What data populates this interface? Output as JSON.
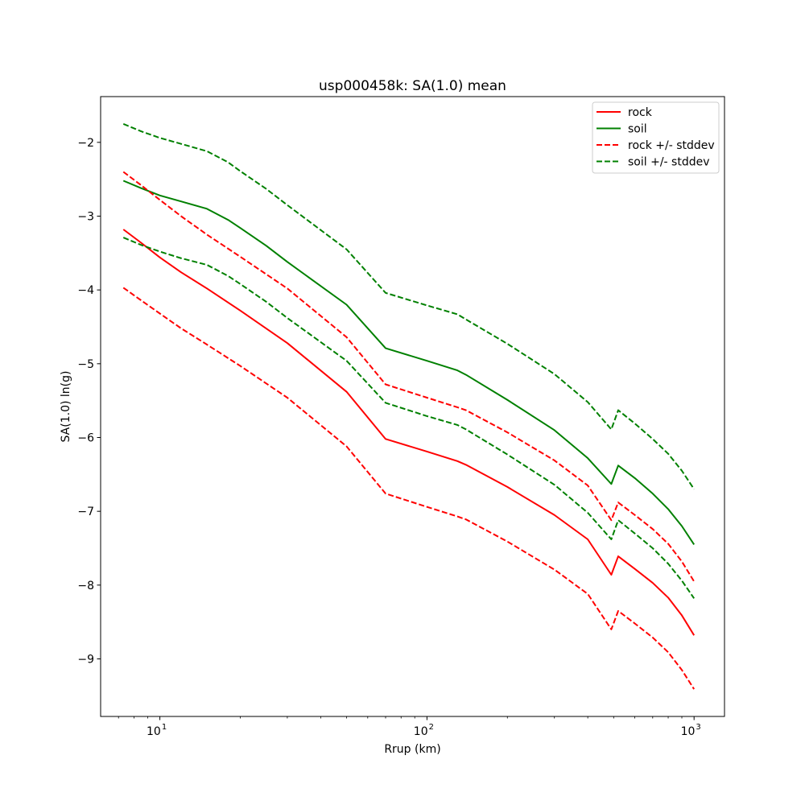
{
  "chart_data": {
    "type": "line",
    "title": "usp000458k: SA(1.0) mean",
    "xlabel": "Rrup (km)",
    "ylabel": "SA(1.0) ln(g)",
    "xscale": "log",
    "xlim": [
      6.0,
      1300
    ],
    "ylim": [
      -9.78,
      -1.38
    ],
    "yticks": [
      -9,
      -8,
      -7,
      -6,
      -5,
      -4,
      -3,
      -2
    ],
    "yticklabels": [
      "−9",
      "−8",
      "−7",
      "−6",
      "−5",
      "−4",
      "−3",
      "−2"
    ],
    "xticks": [
      {
        "value": 10,
        "base": "10",
        "exp": "1"
      },
      {
        "value": 100,
        "base": "10",
        "exp": "2"
      },
      {
        "value": 1000,
        "base": "10",
        "exp": "3"
      }
    ],
    "grid": false,
    "legend_position": "top-right",
    "series": [
      {
        "name": "rock",
        "color": "#ff0000",
        "dash": "solid",
        "x": [
          7.3,
          8.5,
          10,
          12,
          15,
          20,
          30,
          50,
          70,
          100,
          130,
          140,
          200,
          300,
          400,
          490,
          520,
          600,
          700,
          800,
          900,
          1000
        ],
        "y": [
          -3.18,
          -3.36,
          -3.56,
          -3.76,
          -3.98,
          -4.28,
          -4.72,
          -5.38,
          -6.02,
          -6.19,
          -6.32,
          -6.37,
          -6.67,
          -7.05,
          -7.38,
          -7.86,
          -7.61,
          -7.78,
          -7.97,
          -8.17,
          -8.41,
          -8.68
        ]
      },
      {
        "name": "soil",
        "color": "#008000",
        "dash": "solid",
        "x": [
          7.3,
          8.5,
          10,
          12,
          15,
          18,
          20,
          25,
          30,
          50,
          70,
          100,
          130,
          140,
          200,
          300,
          400,
          490,
          520,
          600,
          700,
          800,
          900,
          1000
        ],
        "y": [
          -2.52,
          -2.62,
          -2.72,
          -2.8,
          -2.9,
          -3.05,
          -3.16,
          -3.4,
          -3.62,
          -4.2,
          -4.79,
          -4.96,
          -5.09,
          -5.15,
          -5.49,
          -5.9,
          -6.28,
          -6.63,
          -6.38,
          -6.55,
          -6.76,
          -6.97,
          -7.2,
          -7.45
        ]
      },
      {
        "name": "rock +/- stddev",
        "color": "#ff0000",
        "dash": "dashed",
        "x": [
          7.3,
          8.5,
          10,
          12,
          15,
          20,
          30,
          50,
          70,
          100,
          130,
          140,
          200,
          300,
          400,
          490,
          520,
          600,
          700,
          800,
          900,
          1000
        ],
        "y": [
          -2.4,
          -2.58,
          -2.78,
          -3.0,
          -3.25,
          -3.55,
          -3.98,
          -4.64,
          -5.28,
          -5.46,
          -5.59,
          -5.63,
          -5.93,
          -6.31,
          -6.65,
          -7.12,
          -6.88,
          -7.05,
          -7.24,
          -7.44,
          -7.68,
          -7.95
        ]
      },
      {
        "name": "",
        "color": "#ff0000",
        "dash": "dashed",
        "x": [
          7.3,
          8.5,
          10,
          12,
          15,
          20,
          30,
          50,
          70,
          100,
          130,
          140,
          200,
          300,
          400,
          490,
          520,
          600,
          700,
          800,
          900,
          1000
        ],
        "y": [
          -3.97,
          -4.14,
          -4.32,
          -4.52,
          -4.74,
          -5.03,
          -5.46,
          -6.12,
          -6.76,
          -6.94,
          -7.07,
          -7.11,
          -7.41,
          -7.79,
          -8.12,
          -8.6,
          -8.35,
          -8.52,
          -8.71,
          -8.91,
          -9.15,
          -9.41
        ]
      },
      {
        "name": "soil +/- stddev",
        "color": "#008000",
        "dash": "dashed",
        "x": [
          7.3,
          8.5,
          10,
          12,
          15,
          18,
          20,
          25,
          30,
          50,
          70,
          100,
          130,
          140,
          200,
          300,
          400,
          490,
          520,
          600,
          700,
          800,
          900,
          1000
        ],
        "y": [
          -1.75,
          -1.85,
          -1.94,
          -2.02,
          -2.12,
          -2.27,
          -2.39,
          -2.63,
          -2.85,
          -3.45,
          -4.04,
          -4.21,
          -4.33,
          -4.4,
          -4.73,
          -5.14,
          -5.52,
          -5.89,
          -5.63,
          -5.81,
          -6.02,
          -6.22,
          -6.45,
          -6.7
        ]
      },
      {
        "name": "",
        "color": "#008000",
        "dash": "dashed",
        "x": [
          7.3,
          8.5,
          10,
          12,
          15,
          18,
          20,
          25,
          30,
          50,
          70,
          100,
          130,
          140,
          200,
          300,
          400,
          490,
          520,
          600,
          700,
          800,
          900,
          1000
        ],
        "y": [
          -3.29,
          -3.39,
          -3.48,
          -3.57,
          -3.66,
          -3.81,
          -3.92,
          -4.16,
          -4.38,
          -4.96,
          -5.53,
          -5.71,
          -5.83,
          -5.89,
          -6.23,
          -6.64,
          -7.02,
          -7.38,
          -7.12,
          -7.3,
          -7.5,
          -7.71,
          -7.94,
          -8.18
        ]
      }
    ]
  }
}
